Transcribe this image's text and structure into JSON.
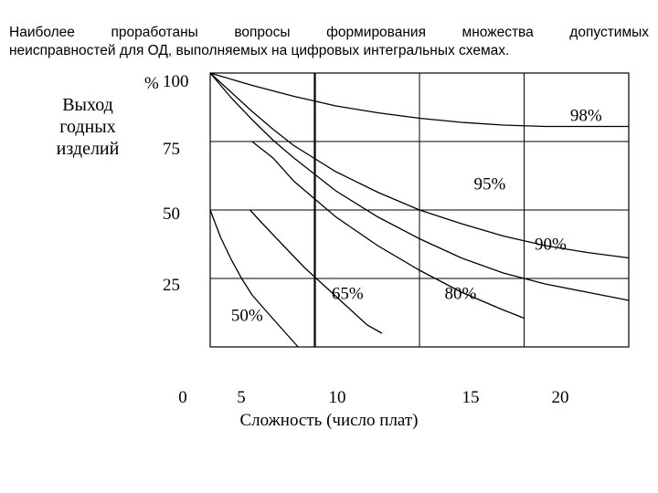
{
  "heading": {
    "line1": "Наиболее проработаны вопросы формирования множества допустимых",
    "line2": "неисправностей для ОД, выполняемых на цифровых интегральных схемах."
  },
  "chart_data": {
    "type": "line",
    "title": "",
    "ylabel_lines": [
      "Выход",
      "годных",
      "изделий"
    ],
    "y_unit": "%",
    "xlabel": "Сложность (число плат)",
    "x_ticks": [
      {
        "value": 0,
        "label": "0"
      },
      {
        "value": 5,
        "label": "5"
      },
      {
        "value": 10,
        "label": "10"
      },
      {
        "value": 15,
        "label": "15"
      },
      {
        "value": 20,
        "label": "20"
      }
    ],
    "y_ticks": [
      {
        "value": 100,
        "label": "100"
      },
      {
        "value": 75,
        "label": "75"
      },
      {
        "value": 50,
        "label": "50"
      },
      {
        "value": 25,
        "label": "25"
      }
    ],
    "xlim": [
      0,
      20
    ],
    "ylim": [
      0,
      100
    ],
    "grid": true,
    "series": [
      {
        "name": "98%",
        "points": [
          [
            0,
            100
          ],
          [
            2,
            95.5
          ],
          [
            4,
            91.5
          ],
          [
            6,
            88
          ],
          [
            8,
            85.5
          ],
          [
            10,
            83.5
          ],
          [
            12,
            82
          ],
          [
            14,
            81
          ],
          [
            16,
            80.5
          ],
          [
            18,
            80.5
          ],
          [
            20,
            80.5
          ]
        ]
      },
      {
        "name": "95%",
        "points": [
          [
            0,
            100
          ],
          [
            1,
            93
          ],
          [
            2,
            86
          ],
          [
            3,
            79.5
          ],
          [
            4,
            73.5
          ],
          [
            6,
            64
          ],
          [
            8,
            56.5
          ],
          [
            10,
            50
          ],
          [
            12,
            45
          ],
          [
            14,
            40.5
          ],
          [
            16,
            37
          ],
          [
            18,
            34.5
          ],
          [
            20,
            32.5
          ]
        ]
      },
      {
        "name": "90%",
        "points": [
          [
            0,
            100
          ],
          [
            1,
            91
          ],
          [
            2,
            83
          ],
          [
            3,
            75.5
          ],
          [
            4,
            69
          ],
          [
            6,
            57
          ],
          [
            8,
            47.5
          ],
          [
            10,
            39.5
          ],
          [
            12,
            32.5
          ],
          [
            14,
            27
          ],
          [
            16,
            23
          ],
          [
            18,
            20
          ],
          [
            20,
            17
          ]
        ]
      },
      {
        "name": "80%",
        "points": [
          [
            2,
            75
          ],
          [
            3,
            69
          ],
          [
            4,
            60.5
          ],
          [
            6,
            47.5
          ],
          [
            8,
            37
          ],
          [
            10,
            28
          ],
          [
            12,
            20
          ],
          [
            14,
            13.5
          ],
          [
            15,
            10.5
          ]
        ]
      },
      {
        "name": "65%",
        "points": [
          [
            1.9,
            50
          ],
          [
            2.5,
            45
          ],
          [
            3.5,
            37
          ],
          [
            4.5,
            29
          ],
          [
            5.5,
            22
          ],
          [
            6.5,
            15
          ],
          [
            7.5,
            8
          ],
          [
            8.2,
            5
          ]
        ]
      },
      {
        "name": "50%",
        "points": [
          [
            0,
            50
          ],
          [
            0.5,
            40
          ],
          [
            1,
            32
          ],
          [
            1.5,
            25
          ],
          [
            2,
            19
          ],
          [
            2.8,
            12
          ],
          [
            3.5,
            6
          ],
          [
            4.2,
            0
          ]
        ]
      }
    ],
    "series_labels": [
      {
        "text": "98%",
        "x": 17.2,
        "y": 82.5
      },
      {
        "text": "95%",
        "x": 12.6,
        "y": 57.5
      },
      {
        "text": "90%",
        "x": 15.5,
        "y": 35.5
      },
      {
        "text": "80%",
        "x": 11.2,
        "y": 17.5
      },
      {
        "text": "65%",
        "x": 5.8,
        "y": 17.5
      },
      {
        "text": "50%",
        "x": 1.0,
        "y": 9.5
      }
    ],
    "marked_x": 5
  }
}
